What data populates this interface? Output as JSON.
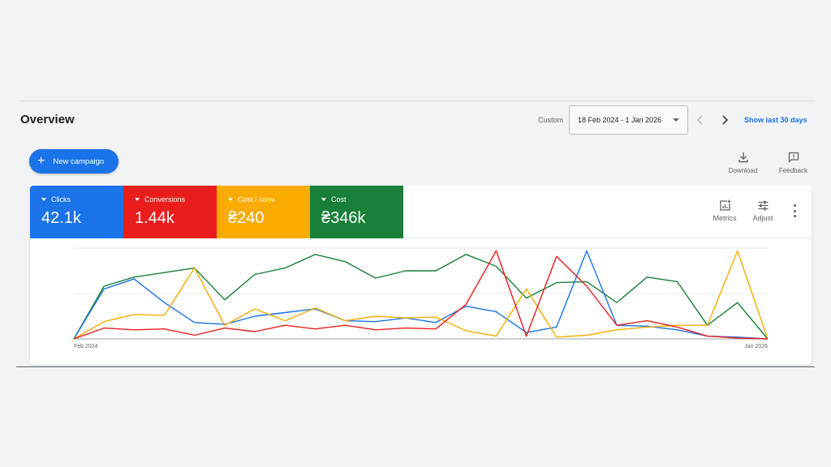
{
  "header": {
    "title": "Overview",
    "date_range_label": "Custom",
    "date_range_value": "18 Feb 2024 - 1 Jan 2026",
    "show_last_link": "Show last 30 days"
  },
  "toolbar": {
    "new_campaign_label": "New campaign",
    "download_label": "Download",
    "feedback_label": "Feedback"
  },
  "scorecards": [
    {
      "label": "Clicks",
      "value": "42.1k",
      "color": "#1a73e8"
    },
    {
      "label": "Conversions",
      "value": "1.44k",
      "color": "#ea1d1d"
    },
    {
      "label": "Cost / conv.",
      "value": "₴240",
      "color": "#f9ab00"
    },
    {
      "label": "Cost",
      "value": "₴346k",
      "color": "#188038"
    }
  ],
  "card_tools": {
    "metrics_label": "Metrics",
    "adjust_label": "Adjust"
  },
  "chart_data": {
    "type": "line",
    "x_tick_labels": [
      "Feb 2024",
      "Jan 2026"
    ],
    "grid": true,
    "y_axis_labels_shown": false,
    "ylim": [
      0,
      100
    ],
    "series": [
      {
        "color": "#188038",
        "values": [
          0,
          58,
          68,
          73,
          78,
          43,
          71,
          78,
          93,
          85,
          67,
          75,
          75,
          93,
          80,
          45,
          62,
          63,
          40,
          68,
          63,
          15,
          40,
          0
        ]
      },
      {
        "color": "#1a73e8",
        "values": [
          0,
          55,
          66,
          40,
          18,
          16,
          25,
          29,
          33,
          20,
          19,
          23,
          18,
          36,
          30,
          7,
          13,
          97,
          15,
          14,
          10,
          3,
          2,
          0
        ]
      },
      {
        "color": "#f9ab00",
        "values": [
          0,
          19,
          27,
          26,
          78,
          15,
          33,
          20,
          34,
          20,
          25,
          23,
          24,
          9,
          3,
          55,
          2,
          4,
          10,
          13,
          15,
          15,
          97,
          0
        ]
      },
      {
        "color": "#ea1d1d",
        "values": [
          0,
          12,
          10,
          11,
          4,
          12,
          8,
          15,
          11,
          15,
          10,
          12,
          11,
          38,
          97,
          3,
          91,
          58,
          15,
          20,
          13,
          3,
          1,
          0
        ]
      }
    ]
  }
}
